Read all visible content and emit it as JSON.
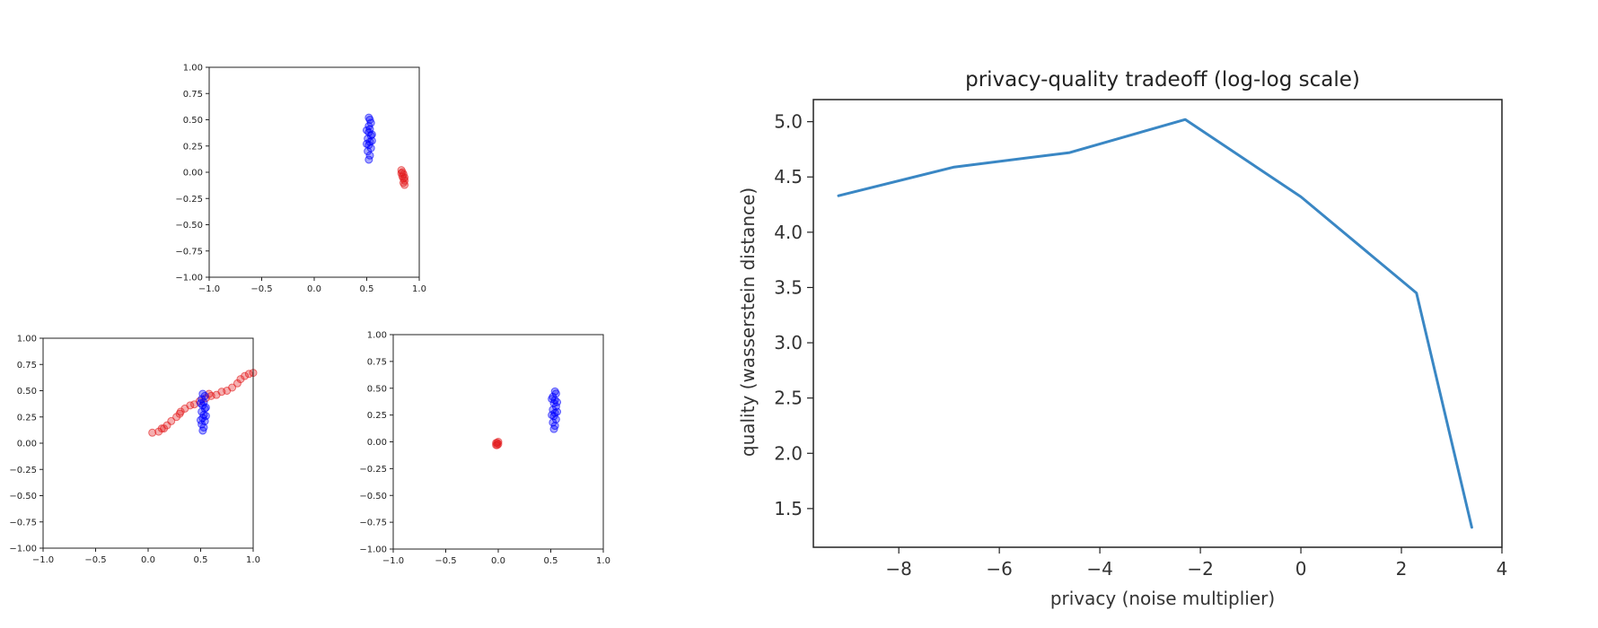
{
  "colors": {
    "series_a": "#0000ff",
    "series_b": "#e31a1c",
    "line": "#3a87c4",
    "axis": "#222222"
  },
  "chart_data": [
    {
      "type": "scatter",
      "xlim": [
        -1,
        1
      ],
      "ylim": [
        -1,
        1
      ],
      "x_ticks": [
        "−1.0",
        "−0.5",
        "0.0",
        "0.5",
        "1.0"
      ],
      "y_ticks": [
        "1.00",
        "0.75",
        "0.50",
        "0.25",
        "0.00",
        "−0.25",
        "−0.50",
        "−0.75",
        "−1.00"
      ],
      "series": [
        {
          "color": "#0000ff",
          "points": [
            [
              0.52,
              0.12
            ],
            [
              0.53,
              0.16
            ],
            [
              0.51,
              0.2
            ],
            [
              0.54,
              0.23
            ],
            [
              0.52,
              0.26
            ],
            [
              0.53,
              0.29
            ],
            [
              0.51,
              0.32
            ],
            [
              0.54,
              0.35
            ],
            [
              0.52,
              0.38
            ],
            [
              0.53,
              0.41
            ],
            [
              0.52,
              0.44
            ],
            [
              0.54,
              0.47
            ],
            [
              0.53,
              0.5
            ],
            [
              0.52,
              0.52
            ],
            [
              0.55,
              0.3
            ],
            [
              0.5,
              0.27
            ],
            [
              0.55,
              0.36
            ],
            [
              0.5,
              0.4
            ]
          ]
        },
        {
          "color": "#e31a1c",
          "points": [
            [
              0.83,
              0.02
            ],
            [
              0.84,
              0.0
            ],
            [
              0.85,
              -0.02
            ],
            [
              0.84,
              -0.04
            ],
            [
              0.85,
              -0.06
            ],
            [
              0.86,
              -0.08
            ],
            [
              0.85,
              -0.1
            ],
            [
              0.86,
              -0.12
            ],
            [
              0.83,
              -0.01
            ],
            [
              0.86,
              -0.05
            ]
          ]
        }
      ]
    },
    {
      "type": "scatter",
      "xlim": [
        -1,
        1
      ],
      "ylim": [
        -1,
        1
      ],
      "x_ticks": [
        "−1.0",
        "−0.5",
        "0.0",
        "0.5",
        "1.0"
      ],
      "y_ticks": [
        "1.00",
        "0.75",
        "0.50",
        "0.25",
        "0.00",
        "−0.25",
        "−0.50",
        "−0.75",
        "−1.00"
      ],
      "series": [
        {
          "color": "#e31a1c",
          "points": [
            [
              0.04,
              0.1
            ],
            [
              0.1,
              0.11
            ],
            [
              0.13,
              0.14
            ],
            [
              0.18,
              0.17
            ],
            [
              0.22,
              0.21
            ],
            [
              0.27,
              0.25
            ],
            [
              0.31,
              0.3
            ],
            [
              0.35,
              0.33
            ],
            [
              0.4,
              0.36
            ],
            [
              0.44,
              0.37
            ],
            [
              0.49,
              0.4
            ],
            [
              0.55,
              0.43
            ],
            [
              0.6,
              0.45
            ],
            [
              0.65,
              0.46
            ],
            [
              0.7,
              0.49
            ],
            [
              0.75,
              0.5
            ],
            [
              0.8,
              0.53
            ],
            [
              0.85,
              0.57
            ],
            [
              0.88,
              0.61
            ],
            [
              0.92,
              0.64
            ],
            [
              0.96,
              0.66
            ],
            [
              1.0,
              0.67
            ],
            [
              0.58,
              0.47
            ],
            [
              0.3,
              0.28
            ],
            [
              0.15,
              0.14
            ]
          ]
        },
        {
          "color": "#0000ff",
          "points": [
            [
              0.52,
              0.12
            ],
            [
              0.53,
              0.15
            ],
            [
              0.51,
              0.18
            ],
            [
              0.54,
              0.21
            ],
            [
              0.52,
              0.24
            ],
            [
              0.53,
              0.27
            ],
            [
              0.51,
              0.3
            ],
            [
              0.54,
              0.33
            ],
            [
              0.52,
              0.36
            ],
            [
              0.53,
              0.39
            ],
            [
              0.51,
              0.42
            ],
            [
              0.54,
              0.45
            ],
            [
              0.52,
              0.47
            ],
            [
              0.55,
              0.26
            ],
            [
              0.5,
              0.22
            ],
            [
              0.55,
              0.34
            ],
            [
              0.5,
              0.38
            ]
          ]
        }
      ]
    },
    {
      "type": "scatter",
      "xlim": [
        -1,
        1
      ],
      "ylim": [
        -1,
        1
      ],
      "x_ticks": [
        "−1.0",
        "−0.5",
        "0.0",
        "0.5",
        "1.0"
      ],
      "y_ticks": [
        "1.00",
        "0.75",
        "0.50",
        "0.25",
        "0.00",
        "−0.25",
        "−0.50",
        "−0.75",
        "−1.00"
      ],
      "series": [
        {
          "color": "#0000ff",
          "points": [
            [
              0.53,
              0.12
            ],
            [
              0.54,
              0.15
            ],
            [
              0.52,
              0.18
            ],
            [
              0.55,
              0.21
            ],
            [
              0.53,
              0.24
            ],
            [
              0.54,
              0.27
            ],
            [
              0.52,
              0.3
            ],
            [
              0.55,
              0.33
            ],
            [
              0.53,
              0.36
            ],
            [
              0.54,
              0.39
            ],
            [
              0.52,
              0.42
            ],
            [
              0.55,
              0.45
            ],
            [
              0.54,
              0.47
            ],
            [
              0.56,
              0.28
            ],
            [
              0.51,
              0.25
            ],
            [
              0.56,
              0.37
            ],
            [
              0.51,
              0.4
            ]
          ]
        },
        {
          "color": "#e31a1c",
          "points": [
            [
              -0.02,
              -0.03
            ],
            [
              -0.01,
              -0.01
            ],
            [
              0.0,
              -0.02
            ],
            [
              -0.02,
              -0.01
            ],
            [
              0.0,
              0.0
            ],
            [
              -0.01,
              -0.03
            ]
          ]
        }
      ]
    },
    {
      "type": "line",
      "title": "privacy-quality tradeoff (log-log scale)",
      "xlabel": "privacy (noise multiplier)",
      "ylabel": "quality (wasserstein distance)",
      "xlim": [
        -9.7,
        4
      ],
      "ylim": [
        1.15,
        5.2
      ],
      "x_ticks": [
        -8,
        -6,
        -4,
        -2,
        0,
        2,
        4
      ],
      "x_tick_labels": [
        "−8",
        "−6",
        "−4",
        "−2",
        "0",
        "2",
        "4"
      ],
      "y_ticks": [
        1.5,
        2.0,
        2.5,
        3.0,
        3.5,
        4.0,
        4.5,
        5.0
      ],
      "y_tick_labels": [
        "1.5",
        "2.0",
        "2.5",
        "3.0",
        "3.5",
        "4.0",
        "4.5",
        "5.0"
      ],
      "grid": false,
      "series": [
        {
          "color": "#3a87c4",
          "x": [
            -9.2,
            -6.9,
            -4.6,
            -2.3,
            0.0,
            2.3,
            3.4
          ],
          "y": [
            4.33,
            4.59,
            4.72,
            5.02,
            4.32,
            3.45,
            1.33
          ]
        }
      ]
    }
  ]
}
